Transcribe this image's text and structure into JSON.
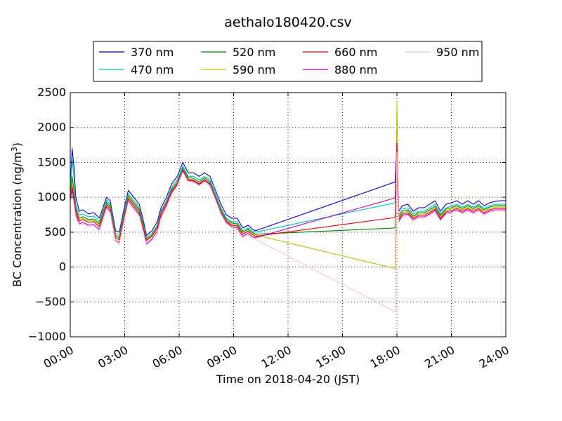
{
  "chart_data": {
    "type": "line",
    "title": "aethalo180420.csv",
    "xlabel": "Time on 2018-04-20 (JST)",
    "ylabel_main": "BC Concentration (ng/m",
    "ylabel_sup": "3",
    "ylabel_close": ")",
    "xlim": [
      0,
      24
    ],
    "ylim": [
      -1000,
      2500
    ],
    "grid": true,
    "legend_placement": "top",
    "x_ticks": [
      {
        "value": 0,
        "label": "00:00"
      },
      {
        "value": 3,
        "label": "03:00"
      },
      {
        "value": 6,
        "label": "06:00"
      },
      {
        "value": 9,
        "label": "09:00"
      },
      {
        "value": 12,
        "label": "12:00"
      },
      {
        "value": 15,
        "label": "15:00"
      },
      {
        "value": 18,
        "label": "18:00"
      },
      {
        "value": 21,
        "label": "21:00"
      },
      {
        "value": 24,
        "label": "24:00"
      }
    ],
    "y_ticks": [
      {
        "value": 2500,
        "label": "2500"
      },
      {
        "value": 2000,
        "label": "2000"
      },
      {
        "value": 1500,
        "label": "1500"
      },
      {
        "value": 1000,
        "label": "1000"
      },
      {
        "value": 500,
        "label": "500"
      },
      {
        "value": 0,
        "label": "0"
      },
      {
        "value": -500,
        "label": "−500"
      },
      {
        "value": -1000,
        "label": "−1000"
      }
    ],
    "x": [
      0,
      0.1,
      0.2,
      0.3,
      0.5,
      0.7,
      1.0,
      1.3,
      1.6,
      2.0,
      2.2,
      2.5,
      2.7,
      3.0,
      3.2,
      3.5,
      3.8,
      4.0,
      4.2,
      4.5,
      4.8,
      5.0,
      5.3,
      5.6,
      5.9,
      6.2,
      6.5,
      6.8,
      7.1,
      7.4,
      7.7,
      8.0,
      8.3,
      8.6,
      8.9,
      9.2,
      9.5,
      9.8,
      10.0,
      10.2,
      17.9,
      18.0,
      18.1,
      18.3,
      18.6,
      18.9,
      19.2,
      19.5,
      19.8,
      20.1,
      20.4,
      20.7,
      21.0,
      21.3,
      21.6,
      21.9,
      22.2,
      22.5,
      22.8,
      23.1,
      23.4,
      23.7,
      24.0
    ],
    "series": [
      {
        "name": "370 nm",
        "color": "#0000cc",
        "values": [
          1100,
          1700,
          1450,
          1000,
          800,
          820,
          760,
          780,
          700,
          1000,
          950,
          520,
          500,
          880,
          1100,
          1000,
          900,
          700,
          450,
          520,
          650,
          850,
          1000,
          1200,
          1300,
          1500,
          1350,
          1350,
          1300,
          1350,
          1300,
          1100,
          900,
          750,
          700,
          700,
          560,
          600,
          550,
          520,
          1220,
          1750,
          800,
          880,
          900,
          800,
          850,
          850,
          900,
          950,
          800,
          900,
          920,
          950,
          900,
          950,
          900,
          950,
          880,
          920,
          940,
          950,
          950
        ]
      },
      {
        "name": "470 nm",
        "color": "#00bfbf",
        "values": [
          1050,
          1550,
          1300,
          900,
          750,
          760,
          720,
          730,
          650,
          960,
          900,
          480,
          450,
          820,
          1050,
          950,
          850,
          650,
          420,
          480,
          600,
          800,
          950,
          1150,
          1250,
          1450,
          1300,
          1300,
          1250,
          1300,
          1250,
          1050,
          850,
          700,
          650,
          650,
          520,
          560,
          520,
          500,
          920,
          1600,
          750,
          830,
          850,
          760,
          800,
          800,
          850,
          900,
          760,
          850,
          870,
          900,
          860,
          900,
          860,
          900,
          840,
          880,
          900,
          900,
          900
        ]
      },
      {
        "name": "520 nm",
        "color": "#008000",
        "values": [
          1000,
          1300,
          1100,
          850,
          700,
          720,
          680,
          690,
          620,
          930,
          870,
          450,
          420,
          790,
          1020,
          920,
          820,
          620,
          400,
          460,
          580,
          780,
          930,
          1120,
          1220,
          1420,
          1280,
          1270,
          1220,
          1280,
          1220,
          1020,
          820,
          680,
          630,
          620,
          500,
          540,
          500,
          470,
          560,
          1500,
          720,
          800,
          820,
          730,
          780,
          780,
          820,
          870,
          740,
          830,
          850,
          880,
          840,
          880,
          840,
          880,
          820,
          860,
          880,
          880,
          880
        ]
      },
      {
        "name": "590 nm",
        "color": "#bfbf00",
        "values": [
          980,
          1200,
          1050,
          820,
          680,
          700,
          660,
          670,
          600,
          910,
          850,
          440,
          410,
          770,
          1000,
          900,
          800,
          600,
          390,
          450,
          570,
          770,
          920,
          1100,
          1200,
          1400,
          1260,
          1250,
          1200,
          1260,
          1200,
          1000,
          800,
          660,
          610,
          600,
          480,
          520,
          480,
          460,
          -20,
          2350,
          700,
          780,
          800,
          720,
          760,
          760,
          800,
          850,
          720,
          810,
          830,
          860,
          820,
          860,
          820,
          860,
          800,
          840,
          860,
          860,
          860
        ]
      },
      {
        "name": "660 nm",
        "color": "#e00000",
        "values": [
          960,
          1150,
          1000,
          800,
          660,
          680,
          640,
          650,
          580,
          890,
          830,
          420,
          390,
          750,
          980,
          880,
          780,
          580,
          380,
          440,
          560,
          760,
          910,
          1090,
          1190,
          1390,
          1250,
          1240,
          1190,
          1250,
          1190,
          990,
          790,
          650,
          600,
          590,
          470,
          510,
          470,
          440,
          710,
          1400,
          680,
          760,
          780,
          700,
          740,
          740,
          780,
          830,
          700,
          790,
          810,
          840,
          800,
          840,
          800,
          840,
          780,
          820,
          840,
          840,
          840
        ]
      },
      {
        "name": "880 nm",
        "color": "#bf00bf",
        "values": [
          940,
          1100,
          950,
          760,
          620,
          640,
          600,
          610,
          540,
          860,
          800,
          380,
          350,
          720,
          950,
          850,
          750,
          550,
          330,
          400,
          520,
          720,
          880,
          1070,
          1180,
          1380,
          1240,
          1230,
          1180,
          1240,
          1180,
          980,
          780,
          640,
          580,
          560,
          440,
          480,
          440,
          420,
          990,
          1780,
          650,
          740,
          760,
          680,
          720,
          720,
          760,
          810,
          680,
          770,
          790,
          820,
          780,
          820,
          780,
          820,
          760,
          800,
          820,
          820,
          820
        ]
      },
      {
        "name": "950 nm",
        "color": "#ffc0cb",
        "values": [
          920,
          1050,
          900,
          720,
          600,
          620,
          580,
          590,
          520,
          840,
          780,
          360,
          330,
          700,
          930,
          830,
          730,
          530,
          310,
          380,
          500,
          700,
          860,
          1050,
          1160,
          1360,
          1220,
          1210,
          1160,
          1220,
          1160,
          960,
          760,
          620,
          560,
          540,
          420,
          460,
          420,
          400,
          -640,
          1650,
          630,
          720,
          740,
          660,
          700,
          700,
          740,
          790,
          660,
          750,
          770,
          800,
          760,
          800,
          760,
          800,
          740,
          780,
          800,
          800,
          800
        ]
      }
    ]
  }
}
